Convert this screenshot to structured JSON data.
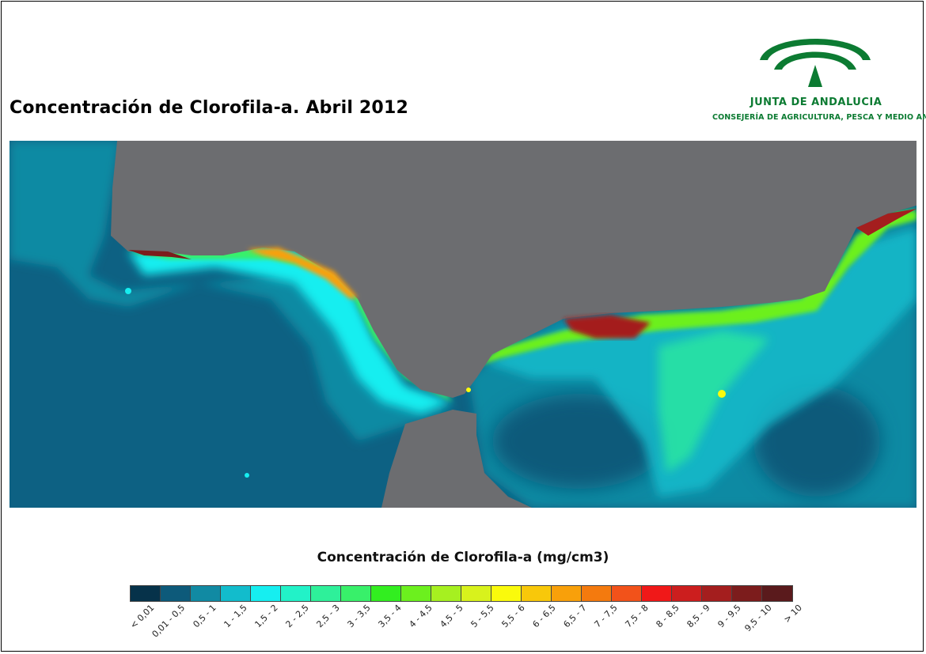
{
  "title": "Concentración de Clorofila-a. Abril 2012",
  "logo": {
    "name": "JUNTA DE ANDALUCIA",
    "subtitle": "CONSEJERÍA DE AGRICULTURA, PESCA Y MEDIO AMBIENTE",
    "icon": "junta-andalucia-emblem-icon"
  },
  "map": {
    "land_color": "#6c6d70",
    "ocean_color": "#0d6183"
  },
  "legend": {
    "title": "Concentración de Clorofila-a (mg/cm3)",
    "classes": [
      {
        "label": "< 0,01",
        "color": "#06324a"
      },
      {
        "label": "0,01 - 0,5",
        "color": "#0d5a7a"
      },
      {
        "label": "0,5 - 1",
        "color": "#118aa3"
      },
      {
        "label": "1 - 1,5",
        "color": "#12bccc"
      },
      {
        "label": "1,5 - 2",
        "color": "#16eef0"
      },
      {
        "label": "2 - 2,5",
        "color": "#22f2c8"
      },
      {
        "label": "2,5 - 3",
        "color": "#2ef09a"
      },
      {
        "label": "3 - 3,5",
        "color": "#38f06a"
      },
      {
        "label": "3,5 - 4",
        "color": "#32ee20"
      },
      {
        "label": "4 - 4,5",
        "color": "#6cf01e"
      },
      {
        "label": "4,5 - 5",
        "color": "#a6f020"
      },
      {
        "label": "5 - 5,5",
        "color": "#d8f21c"
      },
      {
        "label": "5,5 - 6",
        "color": "#fafa0c"
      },
      {
        "label": "6 - 6,5",
        "color": "#f8c80a"
      },
      {
        "label": "6,5 - 7",
        "color": "#f8a00a"
      },
      {
        "label": "7 - 7,5",
        "color": "#f47a0e"
      },
      {
        "label": "7,5 - 8",
        "color": "#f2521a"
      },
      {
        "label": "8 - 8,5",
        "color": "#f01818"
      },
      {
        "label": "8,5 - 9",
        "color": "#cc1e1e"
      },
      {
        "label": "9 - 9,5",
        "color": "#a41e1e"
      },
      {
        "label": "9,5 - 10",
        "color": "#7c1c1c"
      },
      {
        "label": "> 10",
        "color": "#5a1a1c"
      }
    ]
  }
}
